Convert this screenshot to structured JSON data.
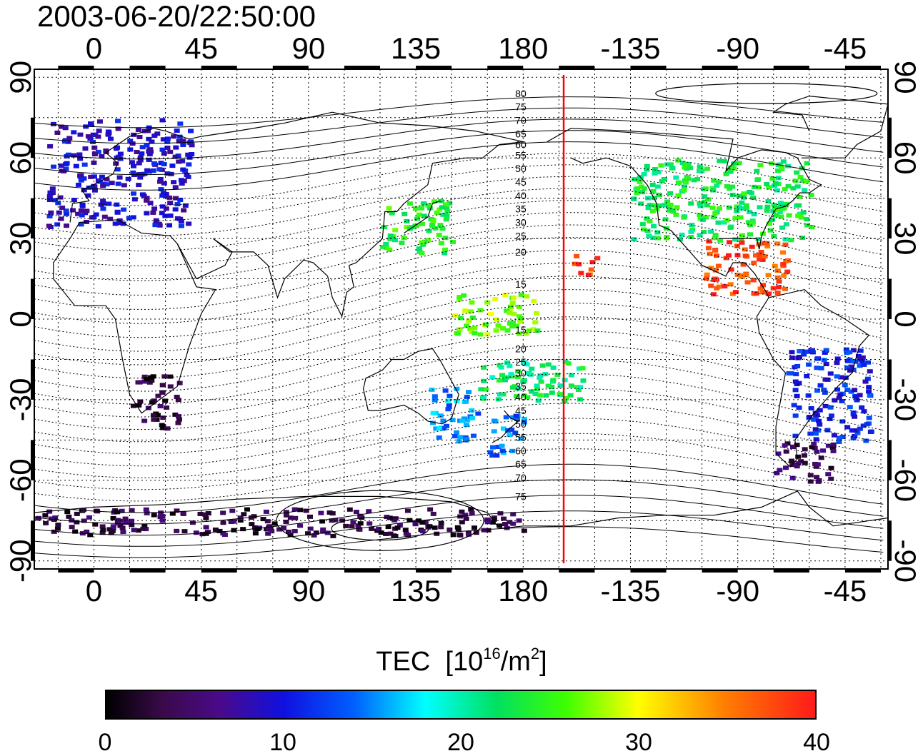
{
  "timestamp": "2003-06-20/22:50:00",
  "colors": {
    "frame": "#000000",
    "terminator": "#ff0000",
    "coast": "#000000",
    "grid": "#000000"
  },
  "map": {
    "lon_ticks": [
      {
        "value": 0,
        "label": "0"
      },
      {
        "value": 45,
        "label": "45"
      },
      {
        "value": 90,
        "label": "90"
      },
      {
        "value": 135,
        "label": "135"
      },
      {
        "value": 180,
        "label": "180"
      },
      {
        "value": 225,
        "label": "-135"
      },
      {
        "value": 270,
        "label": "-90"
      },
      {
        "value": 315,
        "label": "-45"
      }
    ],
    "lat_ticks": [
      {
        "value": 90,
        "label": "90"
      },
      {
        "value": 60,
        "label": "60"
      },
      {
        "value": 30,
        "label": "30"
      },
      {
        "value": 0,
        "label": "0"
      },
      {
        "value": -30,
        "label": "-30"
      },
      {
        "value": -60,
        "label": "-60"
      },
      {
        "value": -90,
        "label": "-90"
      }
    ],
    "lon_range": [
      -25,
      333
    ],
    "lat_range": [
      -93,
      93
    ],
    "terminator_lon": 197,
    "contour_labels_north": [
      "80",
      "75",
      "70",
      "65",
      "60",
      "55",
      "50",
      "45",
      "40",
      "35",
      "30",
      "25",
      "20",
      "15"
    ],
    "contour_labels_south": [
      "15",
      "20",
      "25",
      "30",
      "35",
      "40",
      "45",
      "50",
      "55",
      "60",
      "65",
      "70",
      "75"
    ],
    "contour_label_lats_north": [
      84,
      79,
      74,
      69,
      65,
      61,
      56,
      51,
      46,
      41,
      36,
      31,
      25,
      13
    ],
    "contour_label_lats_south": [
      -4,
      -11,
      -16,
      -20,
      -25,
      -29,
      -34,
      -39,
      -44,
      -49,
      -54,
      -59,
      -66
    ]
  },
  "colorbar": {
    "title": "TEC",
    "unit_base": "[10",
    "unit_exp": "16",
    "unit_mid": "/m",
    "unit_exp2": "2",
    "unit_end": "]",
    "range": [
      0,
      40
    ],
    "tick_values": [
      0,
      10,
      20,
      30,
      40
    ],
    "tick_labels": [
      "0",
      "10",
      "20",
      "30",
      "40"
    ]
  },
  "tec_regions": [
    {
      "name": "europe",
      "lon": [
        -20,
        40
      ],
      "lat": [
        35,
        75
      ],
      "tec": 9
    },
    {
      "name": "n-america",
      "lon": [
        225,
        300
      ],
      "lat": [
        30,
        60
      ],
      "tec": 23
    },
    {
      "name": "gulf",
      "lon": [
        255,
        290
      ],
      "lat": [
        10,
        30
      ],
      "tec": 38
    },
    {
      "name": "japan",
      "lon": [
        120,
        150
      ],
      "lat": [
        25,
        45
      ],
      "tec": 24
    },
    {
      "name": "australia",
      "lon": [
        140,
        160
      ],
      "lat": [
        -45,
        -25
      ],
      "tec": 15
    },
    {
      "name": "new-zealand",
      "lon": [
        165,
        180
      ],
      "lat": [
        -50,
        -35
      ],
      "tec": 14
    },
    {
      "name": "s-america",
      "lon": [
        290,
        325
      ],
      "lat": [
        -45,
        -10
      ],
      "tec": 11
    },
    {
      "name": "s-america-south",
      "lon": [
        285,
        310
      ],
      "lat": [
        -60,
        -45
      ],
      "tec": 4
    },
    {
      "name": "africa-south",
      "lon": [
        15,
        35
      ],
      "lat": [
        -40,
        -20
      ],
      "tec": 3
    },
    {
      "name": "antarctica",
      "lon": [
        -25,
        180
      ],
      "lat": [
        -80,
        -70
      ],
      "tec": 3
    },
    {
      "name": "hawaii",
      "lon": [
        200,
        210
      ],
      "lat": [
        17,
        25
      ],
      "tec": 38
    },
    {
      "name": "pacific-south",
      "lon": [
        160,
        205
      ],
      "lat": [
        -30,
        -15
      ],
      "tec": 22
    },
    {
      "name": "pacific-equator",
      "lon": [
        150,
        185
      ],
      "lat": [
        -5,
        10
      ],
      "tec": 27
    }
  ]
}
